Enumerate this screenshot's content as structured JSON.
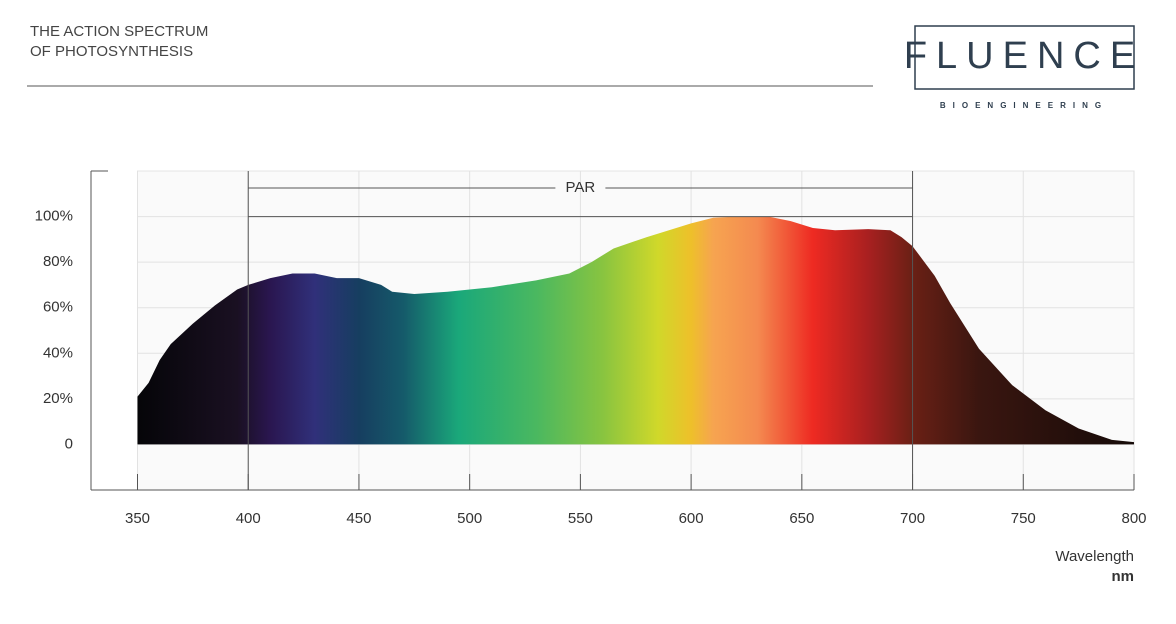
{
  "header": {
    "title_lines": [
      "THE ACTION SPECTRUM",
      "OF PHOTOSYNTHESIS"
    ],
    "logo": "FLUENCE",
    "logo_sub": "BIOENGINEERING"
  },
  "chart_data": {
    "type": "area",
    "x": [
      350,
      355,
      360,
      365,
      375,
      385,
      395,
      400,
      410,
      420,
      430,
      440,
      450,
      460,
      465,
      475,
      490,
      510,
      530,
      545,
      555,
      565,
      580,
      600,
      610,
      620,
      635,
      645,
      655,
      665,
      680,
      690,
      695,
      700,
      710,
      717,
      730,
      745,
      760,
      775,
      790,
      800
    ],
    "values": [
      21,
      27,
      37,
      44,
      53,
      61,
      68,
      70,
      73,
      75,
      75,
      73,
      73,
      70,
      67,
      66,
      67,
      69,
      72,
      75,
      80,
      86,
      91,
      97,
      99.5,
      100,
      100,
      98,
      95,
      94,
      94.5,
      94,
      91,
      87,
      74,
      62,
      42,
      26,
      15,
      7,
      2,
      1
    ],
    "color_stops": [
      {
        "x": 350,
        "color": "#050508"
      },
      {
        "x": 395,
        "color": "#1a1022"
      },
      {
        "x": 410,
        "color": "#2a1650"
      },
      {
        "x": 430,
        "color": "#30307a"
      },
      {
        "x": 450,
        "color": "#163e60"
      },
      {
        "x": 470,
        "color": "#155a6a"
      },
      {
        "x": 495,
        "color": "#1aa87a"
      },
      {
        "x": 530,
        "color": "#4ab860"
      },
      {
        "x": 560,
        "color": "#88c440"
      },
      {
        "x": 585,
        "color": "#d0d82a"
      },
      {
        "x": 600,
        "color": "#eec02a"
      },
      {
        "x": 610,
        "color": "#f6a450"
      },
      {
        "x": 630,
        "color": "#f48a50"
      },
      {
        "x": 655,
        "color": "#ee2a22"
      },
      {
        "x": 680,
        "color": "#a82020"
      },
      {
        "x": 700,
        "color": "#6a2015"
      },
      {
        "x": 730,
        "color": "#3a1610"
      },
      {
        "x": 800,
        "color": "#150a08"
      }
    ],
    "xlim": [
      329,
      800
    ],
    "ylim": [
      -20,
      120
    ],
    "xticks": [
      350,
      400,
      450,
      500,
      550,
      600,
      650,
      700,
      750,
      800
    ],
    "yticks": [
      0,
      {
        "value": 20,
        "label": "20%"
      },
      {
        "value": 40,
        "label": "40%"
      },
      {
        "value": 60,
        "label": "60%"
      },
      {
        "value": 80,
        "label": "80%"
      },
      {
        "value": 100,
        "label": "100%"
      }
    ],
    "grid": true,
    "par_label": "PAR",
    "par_range": [
      400,
      700
    ],
    "par_level": 100,
    "xlabel": "Wavelength",
    "xunit": "nm"
  }
}
